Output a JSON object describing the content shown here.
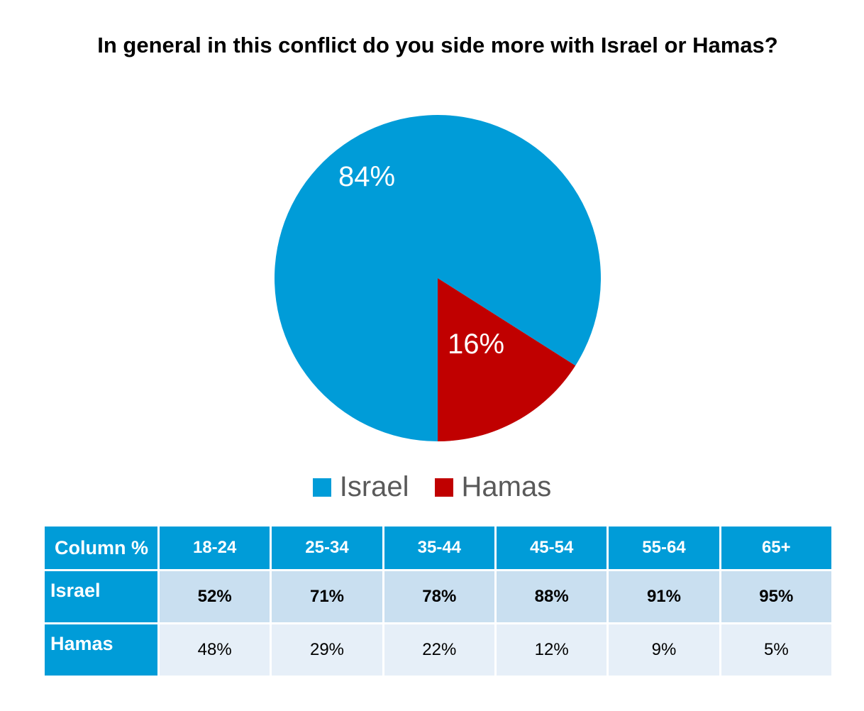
{
  "title": "In general in this conflict do you side more with Israel or Hamas?",
  "chart_data": {
    "type": "pie",
    "title": "In general in this conflict do you side more with Israel or Hamas?",
    "slices": [
      {
        "label": "Israel",
        "value": 84,
        "display": "84%",
        "color": "#009cd8"
      },
      {
        "label": "Hamas",
        "value": 16,
        "display": "16%",
        "color": "#c00000"
      }
    ],
    "legend_position": "bottom"
  },
  "legend": [
    {
      "label": "Israel",
      "color": "#009cd8"
    },
    {
      "label": "Hamas",
      "color": "#c00000"
    }
  ],
  "table": {
    "corner": "Column %",
    "columns": [
      "18-24",
      "25-34",
      "35-44",
      "45-54",
      "55-64",
      "65+"
    ],
    "rows": [
      {
        "label": "Israel",
        "values": [
          "52%",
          "71%",
          "78%",
          "88%",
          "91%",
          "95%"
        ]
      },
      {
        "label": "Hamas",
        "values": [
          "48%",
          "29%",
          "22%",
          "12%",
          "9%",
          "5%"
        ]
      }
    ]
  }
}
